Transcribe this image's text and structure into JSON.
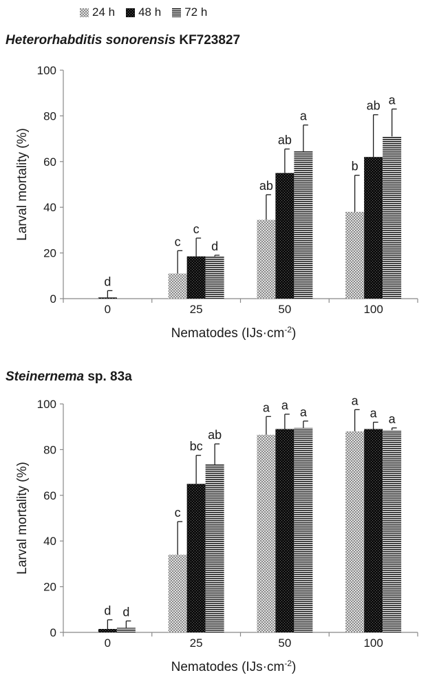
{
  "legend": [
    {
      "label": "24 h",
      "pattern": "dots"
    },
    {
      "label": "48 h",
      "pattern": "dark"
    },
    {
      "label": "72 h",
      "pattern": "lines"
    }
  ],
  "colors": {
    "ink": "#1a1a1a",
    "axis": "#888888",
    "bar_24h": "#b8b8b8",
    "bar_48h": "#111111",
    "bar_72h": "#444444"
  },
  "chart_data": [
    {
      "type": "bar",
      "title_italic": "Heterorhabditis sonorensis",
      "title_rest": " KF723827",
      "xlabel": "Nematodes (IJs·cm",
      "xlabel_sup": "-2",
      "xlabel_end": ")",
      "ylabel": "Larval mortality (%)",
      "ylim": [
        0,
        100
      ],
      "yticks": [
        "0",
        "20",
        "40",
        "60",
        "80",
        "100"
      ],
      "categories": [
        "0",
        "25",
        "50",
        "100"
      ],
      "series": [
        {
          "name": "24 h",
          "values": [
            0,
            11,
            34.5,
            38
          ],
          "errors": [
            0,
            10,
            11,
            16
          ],
          "letters": [
            "",
            "c",
            "ab",
            "b"
          ]
        },
        {
          "name": "48 h",
          "values": [
            0.5,
            18.5,
            55,
            62
          ],
          "errors": [
            3,
            8,
            10.5,
            18.5
          ],
          "letters": [
            "d",
            "c",
            "ab",
            "ab"
          ]
        },
        {
          "name": "72 h",
          "values": [
            0,
            18.5,
            64.5,
            71
          ],
          "errors": [
            0,
            0.5,
            11.5,
            12
          ],
          "letters": [
            "",
            "d",
            "a",
            "a"
          ]
        }
      ]
    },
    {
      "type": "bar",
      "title_italic": "Steinernema",
      "title_rest": " sp. 83a",
      "xlabel": "Nematodes (IJs·cm",
      "xlabel_sup": "-2",
      "xlabel_end": ")",
      "ylabel": "Larval mortality (%)",
      "ylim": [
        0,
        100
      ],
      "yticks": [
        "0",
        "20",
        "40",
        "60",
        "80",
        "100"
      ],
      "categories": [
        "0",
        "25",
        "50",
        "100"
      ],
      "series": [
        {
          "name": "24 h",
          "values": [
            0,
            34,
            86.5,
            88
          ],
          "errors": [
            0,
            14.5,
            8,
            9.5
          ],
          "letters": [
            "",
            "c",
            "a",
            "a"
          ]
        },
        {
          "name": "48 h",
          "values": [
            1.5,
            65,
            89,
            89
          ],
          "errors": [
            4,
            12.5,
            6.5,
            3
          ],
          "letters": [
            "d",
            "bc",
            "a",
            "a"
          ]
        },
        {
          "name": "72 h",
          "values": [
            2,
            73.5,
            89.5,
            88.5
          ],
          "errors": [
            3,
            9,
            3,
            1
          ],
          "letters": [
            "d",
            "ab",
            "a",
            "a"
          ]
        }
      ]
    }
  ]
}
